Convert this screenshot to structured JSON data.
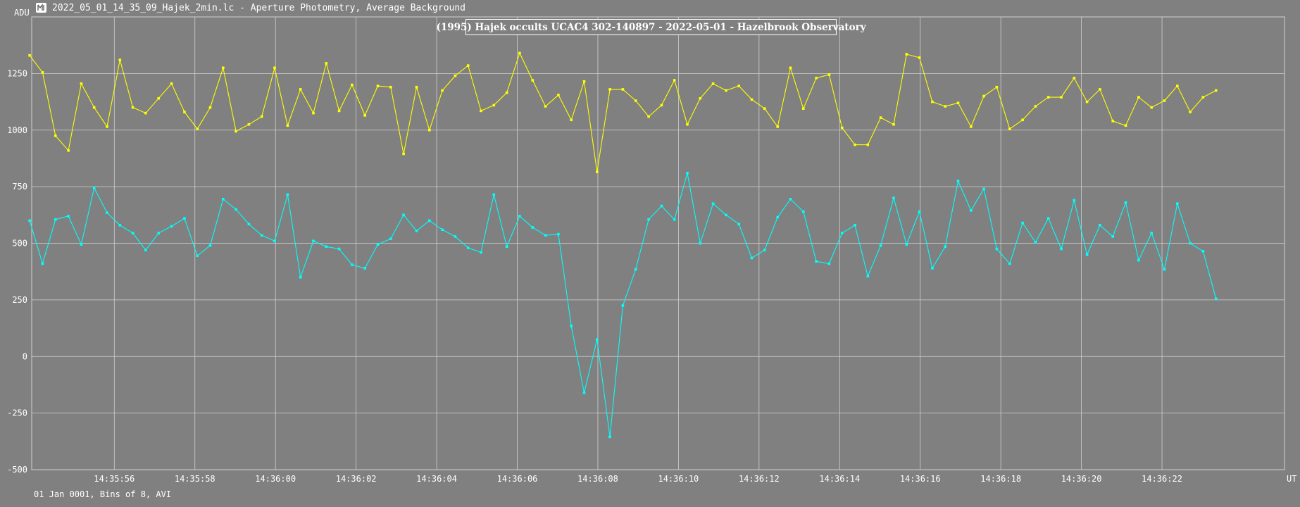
{
  "window": {
    "title": "2022_05_01_14_35_09_Hajek_2min.lc - Aperture Photometry, Average Background",
    "icon": "tangra-app-icon"
  },
  "footer": {
    "text": "01 Jan 0001, Bins of 8, AVI"
  },
  "colors": {
    "background": "#808080",
    "grid": "#d0d0d0",
    "series_target": "#00ffff",
    "series_comparison": "#ffff00",
    "text": "#ffffff"
  },
  "chart_data": {
    "type": "line",
    "title": "(1995) Hajek occults UCAC4 302-140897 - 2022-05-01 - Hazelbrook Observatory",
    "ylabel": "ADU",
    "xlabel": "UT",
    "ylim": [
      -500,
      1500
    ],
    "y_ticks": [
      -500,
      -250,
      0,
      250,
      500,
      750,
      1000,
      1250
    ],
    "x_ticks": [
      "14:35:56",
      "14:35:58",
      "14:36:00",
      "14:36:02",
      "14:36:04",
      "14:36:06",
      "14:36:08",
      "14:36:10",
      "14:36:12",
      "14:36:14",
      "14:36:16",
      "14:36:18",
      "14:36:20",
      "14:36:22"
    ],
    "x_tick_seconds": [
      56,
      58,
      60,
      62,
      64,
      66,
      68,
      70,
      72,
      74,
      76,
      78,
      80,
      82
    ],
    "xlim_seconds": [
      53.95,
      85.04
    ],
    "x_start_seconds": 53.9,
    "x_step_seconds": 0.32,
    "grid": true,
    "series": [
      {
        "values": [
          1330,
          1255,
          975,
          910,
          1205,
          1100,
          1015,
          1310,
          1100,
          1075,
          1140,
          1205,
          1080,
          1005,
          1100,
          1275,
          995,
          1025,
          1060,
          1275,
          1020,
          1180,
          1075,
          1295,
          1085,
          1200,
          1065,
          1195,
          1190,
          895,
          1190,
          1000,
          1175,
          1240,
          1285,
          1085,
          1110,
          1165,
          1340,
          1220,
          1105,
          1155,
          1045,
          1215,
          815,
          1180,
          1180,
          1130,
          1060,
          1110,
          1220,
          1025,
          1140,
          1205,
          1175,
          1195,
          1135,
          1095,
          1015,
          1275,
          1095,
          1230,
          1245,
          1010,
          935,
          935,
          1055,
          1025,
          1335,
          1320,
          1125,
          1105,
          1120,
          1015,
          1150,
          1190,
          1005,
          1045,
          1105,
          1145,
          1145,
          1230,
          1125,
          1180,
          1040,
          1020,
          1145,
          1100,
          1130,
          1195,
          1080,
          1145,
          1175
        ]
      },
      {
        "values": [
          600,
          410,
          605,
          620,
          495,
          745,
          635,
          580,
          545,
          470,
          545,
          575,
          610,
          445,
          490,
          695,
          650,
          585,
          535,
          510,
          715,
          350,
          510,
          485,
          475,
          405,
          390,
          495,
          520,
          625,
          555,
          600,
          560,
          530,
          480,
          460,
          715,
          485,
          620,
          570,
          535,
          540,
          135,
          -160,
          75,
          -355,
          225,
          385,
          605,
          665,
          605,
          810,
          500,
          675,
          625,
          585,
          435,
          470,
          615,
          695,
          640,
          420,
          410,
          545,
          580,
          355,
          490,
          700,
          495,
          640,
          390,
          485,
          775,
          645,
          740,
          475,
          410,
          590,
          505,
          610,
          475,
          690,
          450,
          580,
          530,
          680,
          425,
          545,
          385,
          675,
          500,
          465,
          255
        ]
      }
    ]
  }
}
